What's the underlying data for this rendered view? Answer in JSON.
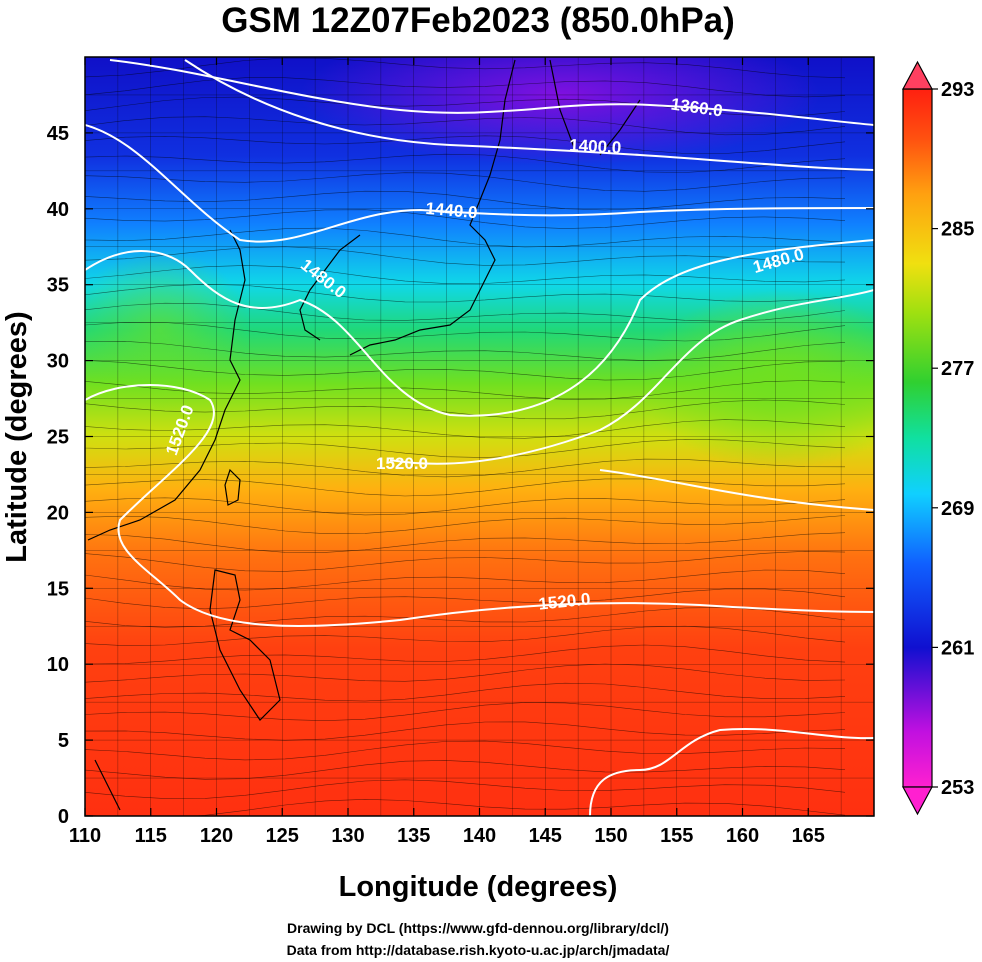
{
  "title": "GSM 12Z07Feb2023 (850.0hPa)",
  "x_axis": {
    "label": "Longitude (degrees)",
    "range": [
      110,
      170
    ],
    "tick_labels": [
      "110",
      "115",
      "120",
      "125",
      "130",
      "135",
      "140",
      "145",
      "150",
      "155",
      "160",
      "165"
    ]
  },
  "y_axis": {
    "label": "Latitude (degrees)",
    "range": [
      0,
      50
    ],
    "tick_labels": [
      "0",
      "5",
      "10",
      "15",
      "20",
      "25",
      "30",
      "35",
      "40",
      "45"
    ]
  },
  "colorbar": {
    "range": [
      253,
      293
    ],
    "tick_labels": [
      "253",
      "261",
      "269",
      "277",
      "285",
      "293"
    ],
    "colors": [
      "#ff20d0",
      "#a010e0",
      "#1010e0",
      "#1060ff",
      "#10d0ff",
      "#10e0a0",
      "#30d030",
      "#a0e010",
      "#f0e010",
      "#ffa010",
      "#ff5010",
      "#ff2010"
    ]
  },
  "contour_labels": [
    "1360.0",
    "1400.0",
    "1440.0",
    "1480.0",
    "1480.0",
    "1520.0",
    "1520.0",
    "1520.0"
  ],
  "footer": {
    "line1": "Drawing by DCL (https://www.gfd-dennou.org/library/dcl/)",
    "line2": "Data from http://database.rish.kyoto-u.ac.jp/arch/jmadata/"
  }
}
